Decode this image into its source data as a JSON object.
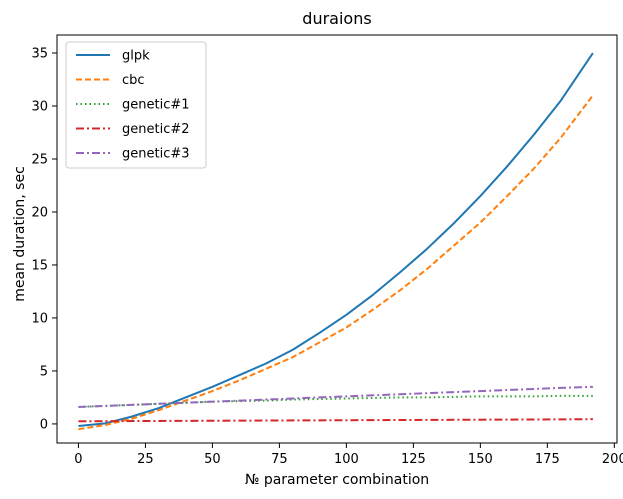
{
  "chart_data": {
    "type": "line",
    "title": "duraions",
    "xlabel": "№ parameter combination",
    "ylabel": "mean duration, sec",
    "xlim": [
      -8,
      201
    ],
    "ylim": [
      -1.8,
      36.7
    ],
    "xticks": [
      0,
      25,
      50,
      75,
      100,
      125,
      150,
      175,
      200
    ],
    "yticks": [
      0,
      5,
      10,
      15,
      20,
      25,
      30,
      35
    ],
    "grid": false,
    "legend_position": "top-left",
    "x": [
      0,
      10,
      20,
      30,
      40,
      50,
      60,
      70,
      80,
      90,
      100,
      110,
      120,
      130,
      140,
      150,
      160,
      170,
      180,
      192
    ],
    "series": [
      {
        "name": "glpk",
        "color": "#1f77b4",
        "dash": "solid",
        "values": [
          -0.2,
          0.05,
          0.7,
          1.5,
          2.5,
          3.5,
          4.6,
          5.7,
          7.0,
          8.6,
          10.3,
          12.2,
          14.3,
          16.5,
          18.9,
          21.5,
          24.3,
          27.3,
          30.5,
          35.0
        ]
      },
      {
        "name": "cbc",
        "color": "#ff7f0e",
        "dash": "dashed",
        "values": [
          -0.5,
          -0.1,
          0.5,
          1.3,
          2.2,
          3.1,
          4.1,
          5.2,
          6.3,
          7.7,
          9.1,
          10.8,
          12.6,
          14.6,
          16.8,
          19.0,
          21.5,
          24.1,
          27.0,
          31.0
        ]
      },
      {
        "name": "genetic#1",
        "color": "#2ca02c",
        "dash": "dotted",
        "values": [
          1.6,
          1.7,
          1.8,
          1.9,
          2.0,
          2.1,
          2.15,
          2.2,
          2.3,
          2.35,
          2.4,
          2.45,
          2.5,
          2.5,
          2.55,
          2.6,
          2.6,
          2.6,
          2.65,
          2.65
        ]
      },
      {
        "name": "genetic#2",
        "color": "#d62728",
        "dash": "dashdot",
        "values": [
          0.25,
          0.26,
          0.27,
          0.28,
          0.29,
          0.3,
          0.31,
          0.32,
          0.33,
          0.34,
          0.35,
          0.36,
          0.37,
          0.38,
          0.39,
          0.4,
          0.41,
          0.42,
          0.43,
          0.45
        ]
      },
      {
        "name": "genetic#3",
        "color": "#9467bd",
        "dash": "dashdot",
        "values": [
          1.6,
          1.7,
          1.8,
          1.9,
          2.0,
          2.1,
          2.2,
          2.3,
          2.4,
          2.5,
          2.6,
          2.7,
          2.8,
          2.9,
          3.0,
          3.1,
          3.2,
          3.3,
          3.4,
          3.5
        ]
      }
    ]
  }
}
